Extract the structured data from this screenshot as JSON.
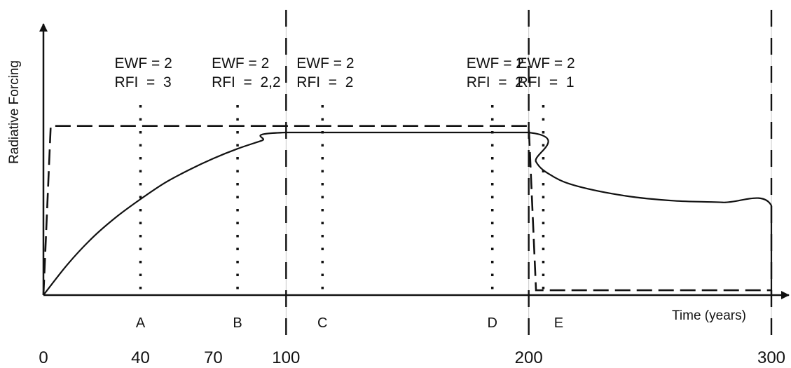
{
  "chart_data": {
    "type": "line",
    "title": "",
    "xlabel": "Time (years)",
    "ylabel": "Radiative Forcing",
    "xlim": [
      0,
      310
    ],
    "x_ticks": [
      0,
      40,
      70,
      100,
      200,
      300
    ],
    "grid": false,
    "legend": "none",
    "series": [
      {
        "style": "solid",
        "x": [
          0,
          10,
          20,
          30,
          40,
          50,
          60,
          70,
          80,
          90,
          100,
          200,
          203,
          210,
          220,
          240,
          260,
          280,
          300,
          300
        ],
        "y": [
          0,
          0.19,
          0.35,
          0.48,
          0.59,
          0.69,
          0.77,
          0.84,
          0.9,
          0.95,
          1.0,
          1.0,
          0.82,
          0.73,
          0.67,
          0.61,
          0.58,
          0.57,
          0.55,
          0
        ]
      },
      {
        "style": "dashed",
        "x": [
          0,
          3,
          100,
          200,
          203,
          210,
          300
        ],
        "y": [
          0,
          1.04,
          1.04,
          1.04,
          0.03,
          0.03,
          0.03
        ]
      }
    ],
    "dotted_markers": [
      {
        "label": "A",
        "x": 40
      },
      {
        "label": "B",
        "x": 80
      },
      {
        "label": "C",
        "x": 115
      },
      {
        "label": "D",
        "x": 185
      },
      {
        "label": "E",
        "x": 206
      }
    ],
    "dashed_boundaries": [
      100,
      200,
      300
    ],
    "annotations": [
      {
        "x": 40,
        "ewf": "EWF = 2",
        "rfi": "RFI  =  3"
      },
      {
        "x": 80,
        "ewf": "EWF = 2",
        "rfi": "RFI  =  2,2"
      },
      {
        "x": 115,
        "ewf": "EWF = 2",
        "rfi": "RFI  =  2"
      },
      {
        "x": 185,
        "ewf": "EWF = 2",
        "rfi": "RFI  =  2"
      },
      {
        "x": 206,
        "ewf": "EWF = 2",
        "rfi": "RFI  =  1"
      }
    ]
  }
}
